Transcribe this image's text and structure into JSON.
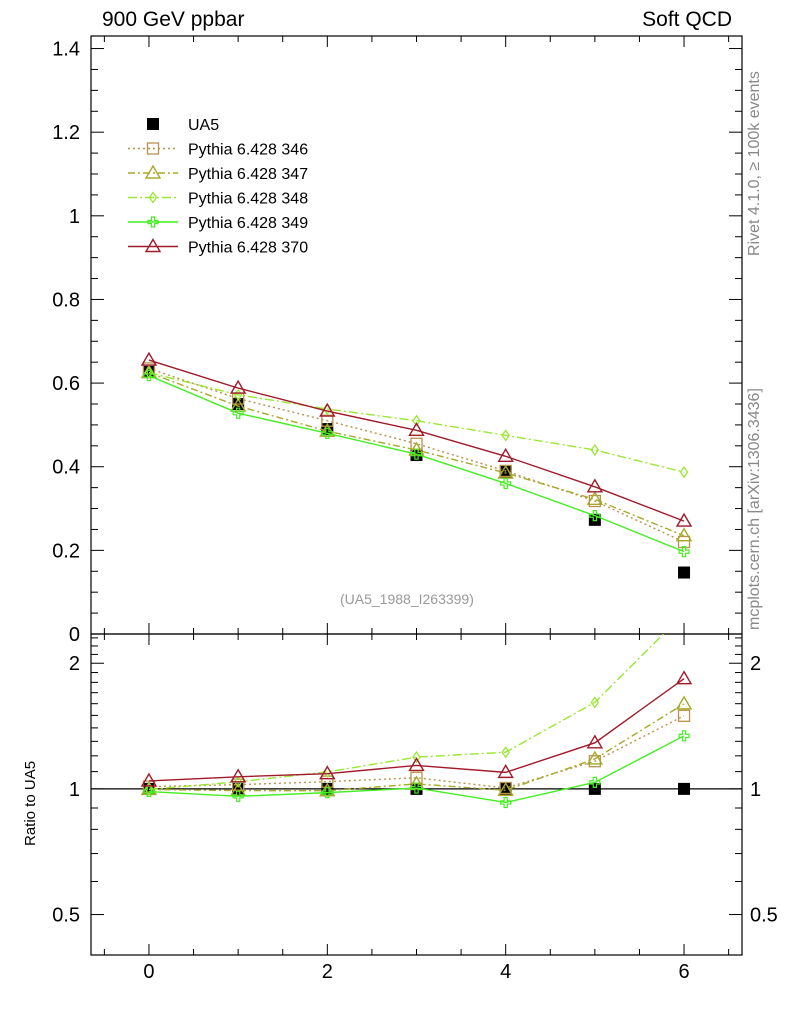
{
  "header": {
    "left": "900 GeV ppbar",
    "right": "Soft QCD"
  },
  "side_labels": {
    "rivet": "Rivet 4.1.0, ≥ 100k events",
    "mcplots": "mcplots.cern.ch [arXiv:1306.3436]"
  },
  "ratio_ylabel": "Ratio to UA5",
  "reference_label": "(UA5_1988_I263399)",
  "chart_data": {
    "type": "line",
    "x": [
      0,
      1,
      2,
      3,
      4,
      5,
      6
    ],
    "xlim": [
      -0.65,
      6.65
    ],
    "xticks": [
      0,
      2,
      4,
      6
    ],
    "main": {
      "ylim": [
        0,
        1.43
      ],
      "yticks": [
        0,
        0.2,
        0.4,
        0.6,
        0.8,
        1,
        1.2,
        1.4
      ],
      "ytick_labels": [
        "0",
        "0.2",
        "0.4",
        "0.6",
        "0.8",
        "1",
        "1.2",
        "1.4"
      ]
    },
    "ratio": {
      "ylim": [
        0.4,
        2.35
      ],
      "yticks": [
        0.5,
        1,
        2
      ],
      "ytick_labels": [
        "0.5",
        "1",
        "2"
      ],
      "scale": "log"
    },
    "data": {
      "name": "UA5",
      "values": [
        0.627,
        0.55,
        0.49,
        0.428,
        0.388,
        0.273,
        0.147
      ]
    },
    "series": [
      {
        "name": "Pythia 6.428 346",
        "color": "#b8924a",
        "dash": "2,3",
        "marker": "square",
        "values": [
          0.635,
          0.563,
          0.51,
          0.455,
          0.39,
          0.318,
          0.22
        ]
      },
      {
        "name": "Pythia 6.428 347",
        "color": "#a8a82a",
        "dash": "7,3,2,3",
        "marker": "triangle",
        "values": [
          0.625,
          0.545,
          0.485,
          0.44,
          0.385,
          0.322,
          0.235
        ]
      },
      {
        "name": "Pythia 6.428 348",
        "color": "#99e833",
        "dash": "9,3,2,3",
        "marker": "diamond",
        "values": [
          0.625,
          0.572,
          0.538,
          0.51,
          0.475,
          0.44,
          0.387
        ]
      },
      {
        "name": "Pythia 6.428 349",
        "color": "#44ee22",
        "dash": "",
        "marker": "plus",
        "values": [
          0.618,
          0.528,
          0.48,
          0.43,
          0.36,
          0.283,
          0.197
        ]
      },
      {
        "name": "Pythia 6.428 370",
        "color": "#a01a2a",
        "dash": "",
        "marker": "triangle",
        "values": [
          0.655,
          0.588,
          0.533,
          0.487,
          0.425,
          0.352,
          0.27
        ]
      }
    ]
  }
}
